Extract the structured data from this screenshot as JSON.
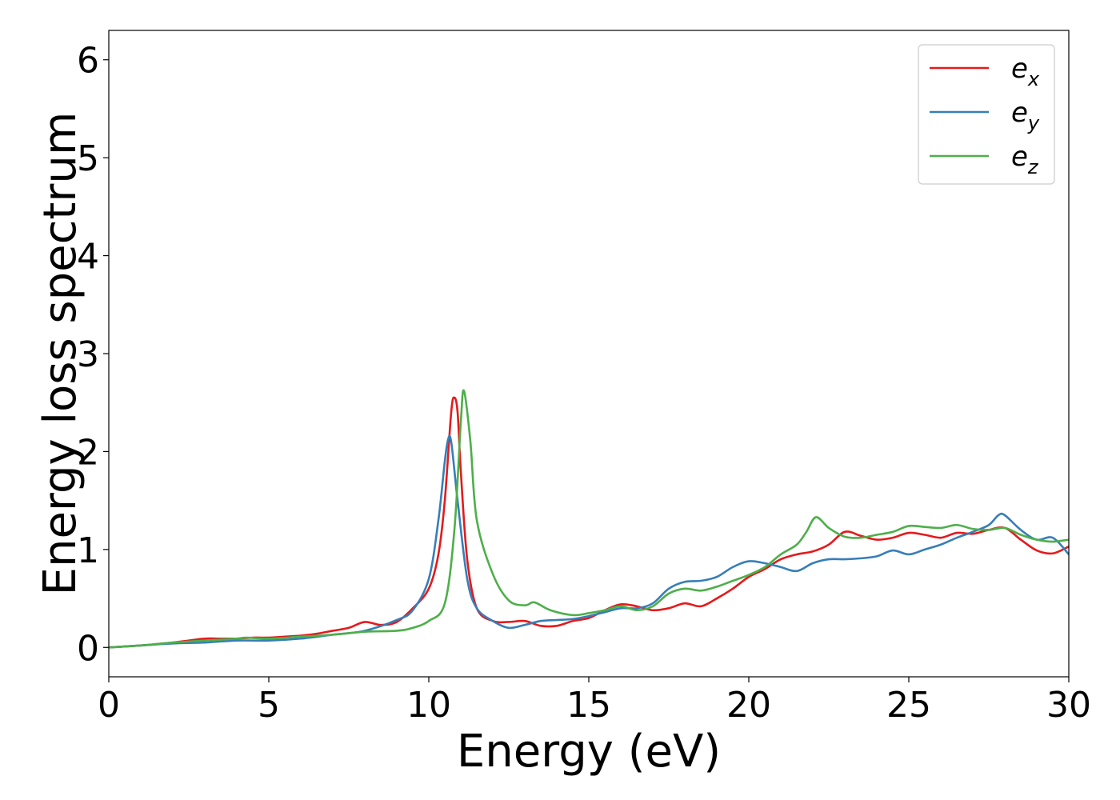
{
  "chart_data": {
    "type": "line",
    "title": "",
    "xlabel": "Energy (eV)",
    "ylabel": "Energy loss spectrum",
    "xlim": [
      0,
      30
    ],
    "ylim": [
      -0.3,
      6.3
    ],
    "xticks": [
      0,
      5,
      10,
      15,
      20,
      25,
      30
    ],
    "xtick_labels": [
      "0",
      "5",
      "10",
      "15",
      "20",
      "25",
      "30"
    ],
    "yticks": [
      0,
      1,
      2,
      3,
      4,
      5,
      6
    ],
    "ytick_labels": [
      "0",
      "1",
      "2",
      "3",
      "4",
      "5",
      "6"
    ],
    "grid": false,
    "legend_position": "top-right",
    "series": [
      {
        "name": "e_x",
        "label_base": "e",
        "label_sub": "x",
        "color": "#e41a1c",
        "x": [
          0,
          1,
          2,
          2.5,
          3,
          3.5,
          4,
          4.5,
          5,
          5.5,
          6,
          6.5,
          7,
          7.5,
          8,
          8.5,
          9,
          9.5,
          10,
          10.3,
          10.5,
          10.7,
          10.8,
          10.9,
          11,
          11.2,
          11.5,
          12,
          12.5,
          13,
          13.5,
          14,
          14.5,
          15,
          15.5,
          16,
          16.5,
          17,
          17.5,
          18,
          18.5,
          19,
          19.5,
          20,
          20.5,
          21,
          21.5,
          22,
          22.5,
          23,
          23.5,
          24,
          24.5,
          25,
          25.5,
          26,
          26.5,
          27,
          27.5,
          28,
          28.5,
          29,
          29.5,
          30
        ],
        "y": [
          0.0,
          0.02,
          0.05,
          0.07,
          0.09,
          0.09,
          0.09,
          0.1,
          0.1,
          0.11,
          0.12,
          0.14,
          0.17,
          0.2,
          0.26,
          0.23,
          0.26,
          0.4,
          0.6,
          0.95,
          1.5,
          2.4,
          2.55,
          2.4,
          1.8,
          0.9,
          0.4,
          0.27,
          0.26,
          0.27,
          0.22,
          0.22,
          0.27,
          0.3,
          0.38,
          0.44,
          0.42,
          0.38,
          0.4,
          0.45,
          0.42,
          0.5,
          0.6,
          0.72,
          0.8,
          0.9,
          0.95,
          0.98,
          1.05,
          1.18,
          1.14,
          1.1,
          1.12,
          1.17,
          1.15,
          1.12,
          1.17,
          1.16,
          1.2,
          1.22,
          1.1,
          0.99,
          0.96,
          1.03
        ]
      },
      {
        "name": "e_y",
        "label_base": "e",
        "label_sub": "y",
        "color": "#377eb8",
        "x": [
          0,
          1,
          2,
          3,
          4,
          5,
          6,
          7,
          8,
          9,
          9.5,
          10,
          10.3,
          10.5,
          10.6,
          10.7,
          10.9,
          11.2,
          11.5,
          12,
          12.5,
          13,
          13.5,
          14,
          14.5,
          15,
          15.5,
          16,
          16.5,
          17,
          17.5,
          18,
          18.5,
          19,
          19.5,
          20,
          20.5,
          21,
          21.5,
          22,
          22.5,
          23,
          23.5,
          24,
          24.5,
          25,
          25.5,
          26,
          26.5,
          27,
          27.5,
          27.8,
          28,
          28.5,
          29,
          29.5,
          30
        ],
        "y": [
          0.0,
          0.02,
          0.04,
          0.05,
          0.07,
          0.07,
          0.09,
          0.13,
          0.17,
          0.28,
          0.38,
          0.7,
          1.3,
          1.9,
          2.12,
          2.1,
          1.5,
          0.7,
          0.4,
          0.27,
          0.2,
          0.23,
          0.27,
          0.28,
          0.29,
          0.32,
          0.36,
          0.4,
          0.4,
          0.45,
          0.6,
          0.67,
          0.68,
          0.72,
          0.82,
          0.88,
          0.86,
          0.82,
          0.78,
          0.86,
          0.9,
          0.9,
          0.91,
          0.93,
          0.99,
          0.95,
          1.0,
          1.05,
          1.12,
          1.18,
          1.25,
          1.35,
          1.35,
          1.2,
          1.1,
          1.12,
          0.95
        ]
      },
      {
        "name": "e_z",
        "label_base": "e",
        "label_sub": "z",
        "color": "#4daf4a",
        "x": [
          0,
          1,
          2,
          3,
          4,
          4.3,
          5,
          6,
          7,
          8,
          9,
          9.5,
          10,
          10.5,
          10.8,
          11,
          11.1,
          11.3,
          11.5,
          12,
          12.5,
          13,
          13.3,
          13.8,
          14.5,
          15,
          15.5,
          16,
          16.5,
          17,
          17.5,
          18,
          18.5,
          19,
          19.5,
          20,
          20.5,
          21,
          21.5,
          21.8,
          22.1,
          22.5,
          23,
          23.5,
          24,
          24.5,
          25,
          25.5,
          26,
          26.5,
          27,
          27.5,
          28,
          28.5,
          29,
          29.5,
          30
        ],
        "y": [
          0.0,
          0.02,
          0.05,
          0.07,
          0.09,
          0.1,
          0.09,
          0.11,
          0.13,
          0.16,
          0.17,
          0.2,
          0.27,
          0.45,
          1.2,
          2.3,
          2.62,
          2.1,
          1.3,
          0.75,
          0.48,
          0.43,
          0.46,
          0.38,
          0.33,
          0.35,
          0.38,
          0.42,
          0.38,
          0.42,
          0.55,
          0.6,
          0.58,
          0.62,
          0.68,
          0.74,
          0.82,
          0.95,
          1.05,
          1.18,
          1.33,
          1.22,
          1.13,
          1.12,
          1.15,
          1.18,
          1.24,
          1.23,
          1.22,
          1.25,
          1.21,
          1.2,
          1.22,
          1.15,
          1.1,
          1.08,
          1.1
        ]
      }
    ]
  }
}
